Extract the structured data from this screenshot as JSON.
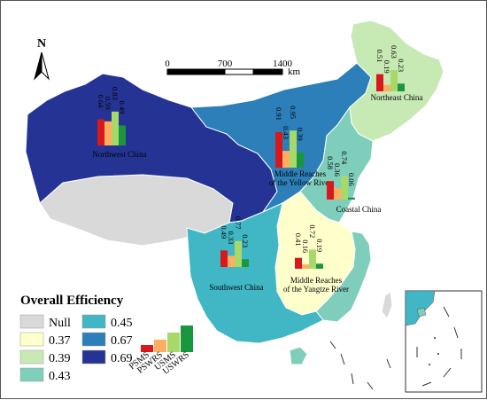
{
  "north_arrow": {
    "label": "N"
  },
  "scale_bar": {
    "ticks": [
      "0",
      "700",
      "1400"
    ],
    "unit": "km"
  },
  "legend": {
    "title": "Overall Efficiency",
    "items": [
      {
        "label": "Null",
        "color": "#d9d9d9"
      },
      {
        "label": "0.37",
        "color": "#ffffcc"
      },
      {
        "label": "0.39",
        "color": "#c7e9b4"
      },
      {
        "label": "0.43",
        "color": "#7fcdbb"
      },
      {
        "label": "0.45",
        "color": "#41b6c4"
      },
      {
        "label": "0.67",
        "color": "#2c7fb8"
      },
      {
        "label": "0.69",
        "color": "#253494"
      }
    ]
  },
  "bar_legend": {
    "labels": [
      "PSMS",
      "PSWRS",
      "USMS",
      "USWRS"
    ],
    "colors": [
      "#d7191c",
      "#fdae61",
      "#a6d96a",
      "#1a9641"
    ]
  },
  "regions": [
    {
      "name": "Northwest China",
      "values": [
        0.64,
        0.59,
        0.83,
        0.49
      ]
    },
    {
      "name": "Northeast China",
      "values": [
        0.51,
        0.19,
        0.63,
        0.23
      ]
    },
    {
      "name": "Middle Reaches of the Yellow River",
      "label_lines": [
        "Middle Reaches",
        "of the Yellow River"
      ],
      "values": [
        0.91,
        0.43,
        0.95,
        0.39
      ]
    },
    {
      "name": "Coastal China",
      "values": [
        0.58,
        0.36,
        0.74,
        0.06
      ]
    },
    {
      "name": "Southwest China",
      "values": [
        0.49,
        0.33,
        0.77,
        0.23
      ]
    },
    {
      "name": "Middle Reaches of the Yangtze River",
      "label_lines": [
        "Middle Reaches",
        "of the Yangtze River"
      ],
      "values": [
        0.41,
        0.16,
        0.72,
        0.19
      ]
    }
  ]
}
